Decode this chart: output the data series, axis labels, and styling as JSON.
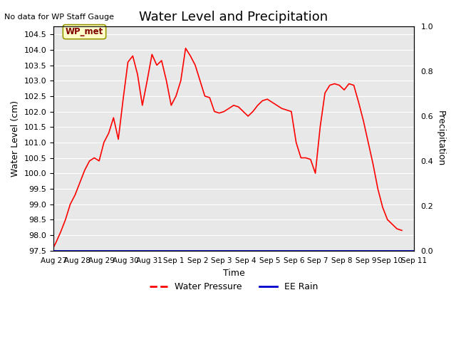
{
  "title": "Water Level and Precipitation",
  "subtitle": "No data for WP Staff Gauge",
  "xlabel": "Time",
  "ylabel_left": "Water Level (cm)",
  "ylabel_right": "Precipitation",
  "annotation": "WP_met",
  "xlim_days": [
    0,
    15
  ],
  "ylim_left": [
    97.5,
    104.75
  ],
  "ylim_right": [
    0.0,
    1.0
  ],
  "xtick_labels": [
    "Aug 27",
    "Aug 28",
    "Aug 29",
    "Aug 30",
    "Aug 31",
    "Sep 1",
    "Sep 2",
    "Sep 3",
    "Sep 4",
    "Sep 5",
    "Sep 6",
    "Sep 7",
    "Sep 8",
    "Sep 9",
    "Sep 10",
    "Sep 11"
  ],
  "yticks_left": [
    97.5,
    98.0,
    98.5,
    99.0,
    99.5,
    100.0,
    100.5,
    101.0,
    101.5,
    102.0,
    102.5,
    103.0,
    103.5,
    104.0,
    104.5
  ],
  "yticks_right": [
    0.0,
    0.2,
    0.4,
    0.6,
    0.8,
    1.0
  ],
  "background_color": "#e8e8e8",
  "line_color_wp": "#ff0000",
  "line_color_rain": "#0000cc",
  "water_pressure_x": [
    0,
    0.1,
    0.3,
    0.5,
    0.7,
    0.9,
    1.1,
    1.3,
    1.5,
    1.7,
    1.9,
    2.1,
    2.3,
    2.5,
    2.7,
    2.9,
    3.1,
    3.3,
    3.5,
    3.7,
    3.9,
    4.1,
    4.3,
    4.5,
    4.7,
    4.9,
    5.1,
    5.3,
    5.5,
    5.7,
    5.9,
    6.1,
    6.3,
    6.5,
    6.7,
    6.9,
    7.1,
    7.3,
    7.5,
    7.7,
    7.9,
    8.1,
    8.3,
    8.5,
    8.7,
    8.9,
    9.1,
    9.3,
    9.5,
    9.7,
    9.9,
    10.1,
    10.3,
    10.5,
    10.7,
    10.9,
    11.1,
    11.3,
    11.5,
    11.7,
    11.9,
    12.1,
    12.3,
    12.5,
    12.7,
    12.9,
    13.1,
    13.3,
    13.5,
    13.7,
    13.9,
    14.1,
    14.3,
    14.5
  ],
  "water_pressure_y": [
    97.6,
    97.75,
    98.1,
    98.5,
    99.0,
    99.3,
    99.7,
    100.1,
    100.4,
    100.5,
    100.4,
    101.0,
    101.3,
    101.8,
    101.1,
    102.4,
    103.6,
    103.8,
    103.2,
    102.2,
    103.0,
    103.85,
    103.5,
    103.65,
    103.0,
    102.2,
    102.5,
    103.0,
    104.05,
    103.8,
    103.5,
    103.0,
    102.5,
    102.45,
    102.0,
    101.95,
    102.0,
    102.1,
    102.2,
    102.15,
    102.0,
    101.85,
    102.0,
    102.2,
    102.35,
    102.4,
    102.3,
    102.2,
    102.1,
    102.05,
    102.0,
    101.0,
    100.5,
    100.5,
    100.45,
    100.0,
    101.5,
    102.6,
    102.85,
    102.9,
    102.85,
    102.7,
    102.9,
    102.85,
    102.3,
    101.7,
    101.0,
    100.3,
    99.5,
    98.9,
    98.5,
    98.35,
    98.2,
    98.15
  ]
}
